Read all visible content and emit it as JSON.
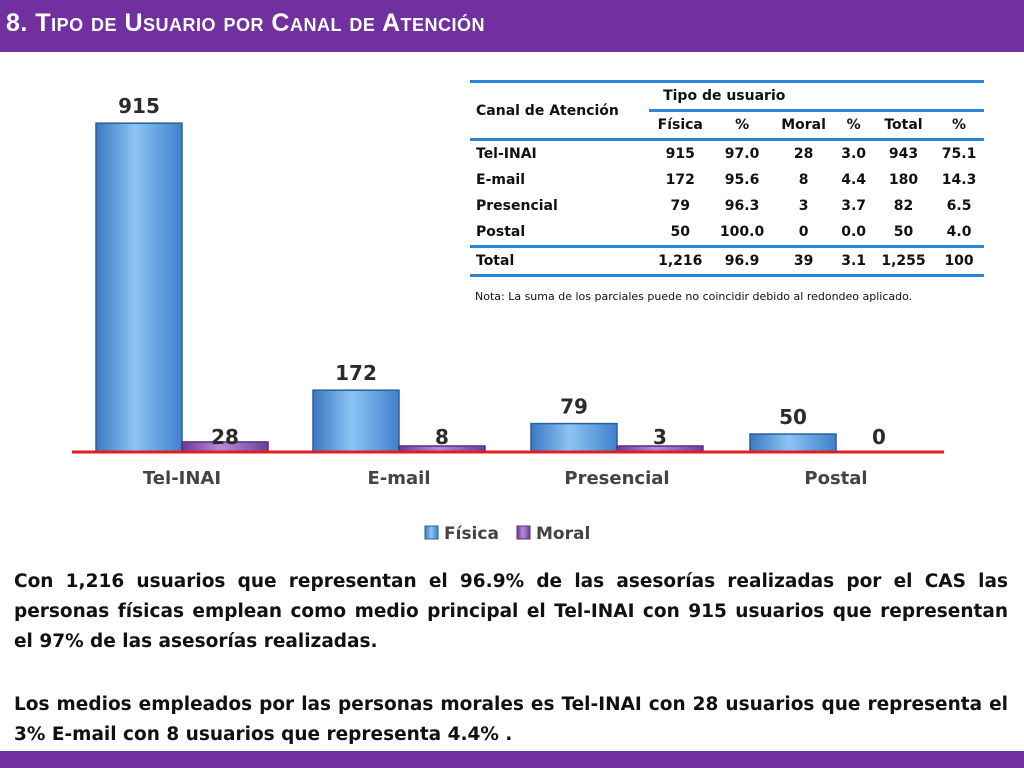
{
  "header": {
    "title": "8. Tipo de Usuario por Canal de Atención",
    "color": "#7030a0"
  },
  "chart_data": {
    "type": "bar",
    "categories": [
      "Tel-INAI",
      "E-mail",
      "Presencial",
      "Postal"
    ],
    "series": [
      {
        "name": "Física",
        "values": [
          915,
          172,
          79,
          50
        ],
        "color": "#5aa0e6"
      },
      {
        "name": "Moral",
        "values": [
          28,
          8,
          3,
          0
        ],
        "color": "#8e58b8"
      }
    ],
    "ylim": [
      0,
      960
    ],
    "title": "",
    "xlabel": "",
    "ylabel": "",
    "legend_position": "bottom",
    "baseline_color": "#e02020"
  },
  "table": {
    "header_channel": "Canal de Atención",
    "header_group": "Tipo de usuario",
    "columns": [
      "Física",
      "%",
      "Moral",
      "%",
      "Total",
      "%"
    ],
    "rows": [
      {
        "label": "Tel-INAI",
        "values": [
          "915",
          "97.0",
          "28",
          "3.0",
          "943",
          "75.1"
        ]
      },
      {
        "label": "E-mail",
        "values": [
          "172",
          "95.6",
          "8",
          "4.4",
          "180",
          "14.3"
        ]
      },
      {
        "label": "Presencial",
        "values": [
          "79",
          "96.3",
          "3",
          "3.7",
          "82",
          "6.5"
        ]
      },
      {
        "label": "Postal",
        "values": [
          "50",
          "100.0",
          "0",
          "0.0",
          "50",
          "4.0"
        ]
      }
    ],
    "total": {
      "label": "Total",
      "values": [
        "1,216",
        "96.9",
        "39",
        "3.1",
        "1,255",
        "100"
      ]
    }
  },
  "note": "Nota: La suma de los parciales puede no coincidir debido al redondeo aplicado.",
  "paragraphs": {
    "p1": "Con 1,216 usuarios que representan el 96.9% de las asesorías realizadas por el CAS las personas físicas emplean como medio principal el Tel-INAI con 915 usuarios que representan el 97% de las asesorías realizadas.",
    "p2": "Los medios empleados por las personas morales es Tel-INAI con 28 usuarios que representa el 3%  E-mail con 8 usuarios que representa 4.4% ."
  }
}
